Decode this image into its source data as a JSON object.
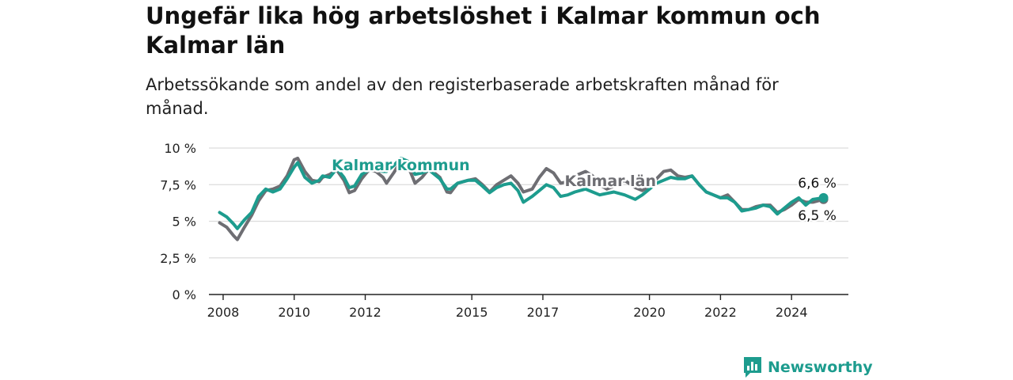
{
  "title": "Ungefär lika hög arbetslöshet i Kalmar kommun och Kalmar län",
  "subtitle": "Arbetssökande som andel av den registerbaserade arbetskraften månad för månad.",
  "brand": {
    "name": "Newsworthy",
    "color": "#1d9c8e"
  },
  "chart_data": {
    "type": "line",
    "ylim": [
      0,
      10
    ],
    "yticks": [
      {
        "value": 0,
        "label": "0 %"
      },
      {
        "value": 2.5,
        "label": "2,5 %"
      },
      {
        "value": 5,
        "label": "5 %"
      },
      {
        "value": 7.5,
        "label": "7,5 %"
      },
      {
        "value": 10,
        "label": "10 %"
      }
    ],
    "xlim": [
      2007.6,
      2025.6
    ],
    "xticks": [
      {
        "value": 2008,
        "label": "2008"
      },
      {
        "value": 2010,
        "label": "2010"
      },
      {
        "value": 2012,
        "label": "2012"
      },
      {
        "value": 2015,
        "label": "2015"
      },
      {
        "value": 2017,
        "label": "2017"
      },
      {
        "value": 2020,
        "label": "2020"
      },
      {
        "value": 2022,
        "label": "2022"
      },
      {
        "value": 2024,
        "label": "2024"
      }
    ],
    "grid": true,
    "series": [
      {
        "name": "Kalmar län",
        "color": "#6e6e73",
        "points": [
          [
            2007.9,
            4.9
          ],
          [
            2008.1,
            4.6
          ],
          [
            2008.3,
            4.0
          ],
          [
            2008.4,
            3.75
          ],
          [
            2008.6,
            4.6
          ],
          [
            2008.8,
            5.4
          ],
          [
            2009.0,
            6.4
          ],
          [
            2009.2,
            7.1
          ],
          [
            2009.4,
            7.2
          ],
          [
            2009.6,
            7.4
          ],
          [
            2009.8,
            8.1
          ],
          [
            2010.0,
            9.2
          ],
          [
            2010.1,
            9.3
          ],
          [
            2010.3,
            8.4
          ],
          [
            2010.5,
            7.8
          ],
          [
            2010.7,
            7.7
          ],
          [
            2010.8,
            8.0
          ],
          [
            2011.0,
            8.2
          ],
          [
            2011.2,
            8.5
          ],
          [
            2011.4,
            7.8
          ],
          [
            2011.55,
            6.95
          ],
          [
            2011.7,
            7.1
          ],
          [
            2011.9,
            7.9
          ],
          [
            2012.1,
            8.5
          ],
          [
            2012.3,
            8.4
          ],
          [
            2012.5,
            8.0
          ],
          [
            2012.6,
            7.6
          ],
          [
            2012.8,
            8.3
          ],
          [
            2013.0,
            9.1
          ],
          [
            2013.2,
            8.8
          ],
          [
            2013.4,
            7.6
          ],
          [
            2013.6,
            8.0
          ],
          [
            2013.8,
            8.6
          ],
          [
            2014.1,
            8.0
          ],
          [
            2014.3,
            7.0
          ],
          [
            2014.4,
            6.95
          ],
          [
            2014.6,
            7.6
          ],
          [
            2014.9,
            7.8
          ],
          [
            2015.1,
            7.9
          ],
          [
            2015.3,
            7.5
          ],
          [
            2015.5,
            7.0
          ],
          [
            2015.7,
            7.5
          ],
          [
            2015.9,
            7.8
          ],
          [
            2016.1,
            8.1
          ],
          [
            2016.3,
            7.6
          ],
          [
            2016.45,
            7.0
          ],
          [
            2016.7,
            7.2
          ],
          [
            2016.9,
            8.0
          ],
          [
            2017.1,
            8.6
          ],
          [
            2017.3,
            8.3
          ],
          [
            2017.5,
            7.6
          ],
          [
            2017.7,
            7.7
          ],
          [
            2017.9,
            8.1
          ],
          [
            2018.2,
            8.4
          ],
          [
            2018.4,
            8.1
          ],
          [
            2018.6,
            7.5
          ],
          [
            2018.8,
            7.2
          ],
          [
            2019.0,
            7.4
          ],
          [
            2019.3,
            7.8
          ],
          [
            2019.6,
            7.3
          ],
          [
            2019.8,
            7.1
          ],
          [
            2020.0,
            7.4
          ],
          [
            2020.2,
            7.9
          ],
          [
            2020.4,
            8.4
          ],
          [
            2020.6,
            8.5
          ],
          [
            2020.8,
            8.1
          ],
          [
            2021.0,
            8.0
          ],
          [
            2021.2,
            8.1
          ],
          [
            2021.4,
            7.5
          ],
          [
            2021.6,
            7.0
          ],
          [
            2021.8,
            6.8
          ],
          [
            2022.0,
            6.6
          ],
          [
            2022.2,
            6.8
          ],
          [
            2022.4,
            6.3
          ],
          [
            2022.6,
            5.8
          ],
          [
            2022.8,
            5.8
          ],
          [
            2023.0,
            6.0
          ],
          [
            2023.2,
            6.1
          ],
          [
            2023.4,
            6.1
          ],
          [
            2023.6,
            5.6
          ],
          [
            2023.8,
            5.8
          ],
          [
            2024.0,
            6.1
          ],
          [
            2024.2,
            6.5
          ],
          [
            2024.4,
            6.3
          ],
          [
            2024.6,
            6.3
          ],
          [
            2024.9,
            6.5
          ]
        ]
      },
      {
        "name": "Kalmar kommun",
        "color": "#1d9c8e",
        "points": [
          [
            2007.9,
            5.6
          ],
          [
            2008.1,
            5.3
          ],
          [
            2008.3,
            4.8
          ],
          [
            2008.4,
            4.5
          ],
          [
            2008.6,
            5.1
          ],
          [
            2008.8,
            5.6
          ],
          [
            2009.0,
            6.7
          ],
          [
            2009.2,
            7.2
          ],
          [
            2009.4,
            7.0
          ],
          [
            2009.6,
            7.2
          ],
          [
            2009.8,
            7.9
          ],
          [
            2010.0,
            8.7
          ],
          [
            2010.1,
            9.0
          ],
          [
            2010.3,
            8.0
          ],
          [
            2010.5,
            7.6
          ],
          [
            2010.7,
            7.8
          ],
          [
            2010.8,
            8.1
          ],
          [
            2011.0,
            8.0
          ],
          [
            2011.2,
            8.6
          ],
          [
            2011.4,
            8.0
          ],
          [
            2011.55,
            7.3
          ],
          [
            2011.7,
            7.4
          ],
          [
            2011.9,
            8.2
          ],
          [
            2012.1,
            8.5
          ],
          [
            2012.3,
            8.5
          ],
          [
            2012.5,
            8.4
          ],
          [
            2012.6,
            8.4
          ],
          [
            2012.8,
            8.8
          ],
          [
            2013.0,
            9.3
          ],
          [
            2013.2,
            9.1
          ],
          [
            2013.4,
            8.2
          ],
          [
            2013.6,
            8.3
          ],
          [
            2013.8,
            8.5
          ],
          [
            2014.1,
            7.9
          ],
          [
            2014.3,
            7.2
          ],
          [
            2014.4,
            7.2
          ],
          [
            2014.6,
            7.6
          ],
          [
            2014.9,
            7.8
          ],
          [
            2015.1,
            7.8
          ],
          [
            2015.3,
            7.4
          ],
          [
            2015.5,
            6.95
          ],
          [
            2015.7,
            7.3
          ],
          [
            2015.9,
            7.5
          ],
          [
            2016.1,
            7.6
          ],
          [
            2016.3,
            7.1
          ],
          [
            2016.45,
            6.3
          ],
          [
            2016.7,
            6.7
          ],
          [
            2016.9,
            7.1
          ],
          [
            2017.1,
            7.5
          ],
          [
            2017.3,
            7.3
          ],
          [
            2017.5,
            6.7
          ],
          [
            2017.7,
            6.8
          ],
          [
            2017.9,
            7.0
          ],
          [
            2018.2,
            7.2
          ],
          [
            2018.4,
            7.0
          ],
          [
            2018.6,
            6.8
          ],
          [
            2018.8,
            6.9
          ],
          [
            2019.0,
            7.0
          ],
          [
            2019.3,
            6.8
          ],
          [
            2019.6,
            6.5
          ],
          [
            2019.8,
            6.8
          ],
          [
            2020.0,
            7.2
          ],
          [
            2020.2,
            7.6
          ],
          [
            2020.4,
            7.8
          ],
          [
            2020.6,
            8.0
          ],
          [
            2020.8,
            7.9
          ],
          [
            2021.0,
            7.9
          ],
          [
            2021.2,
            8.1
          ],
          [
            2021.4,
            7.5
          ],
          [
            2021.6,
            7.0
          ],
          [
            2021.8,
            6.8
          ],
          [
            2022.0,
            6.6
          ],
          [
            2022.2,
            6.6
          ],
          [
            2022.4,
            6.3
          ],
          [
            2022.6,
            5.7
          ],
          [
            2022.8,
            5.8
          ],
          [
            2023.0,
            5.9
          ],
          [
            2023.2,
            6.1
          ],
          [
            2023.4,
            6.0
          ],
          [
            2023.6,
            5.5
          ],
          [
            2023.8,
            5.9
          ],
          [
            2024.0,
            6.3
          ],
          [
            2024.2,
            6.6
          ],
          [
            2024.4,
            6.1
          ],
          [
            2024.6,
            6.5
          ],
          [
            2024.9,
            6.6
          ]
        ]
      }
    ],
    "series_labels": [
      {
        "series": "Kalmar kommun",
        "text": "Kalmar kommun",
        "x": 2013.0,
        "y": 8.5
      },
      {
        "series": "Kalmar län",
        "text": "Kalmar län",
        "x": 2018.9,
        "y": 7.4
      }
    ],
    "end_labels": [
      {
        "series": "Kalmar kommun",
        "text": "6,6 %"
      },
      {
        "series": "Kalmar län",
        "text": "6,5 %"
      }
    ]
  }
}
